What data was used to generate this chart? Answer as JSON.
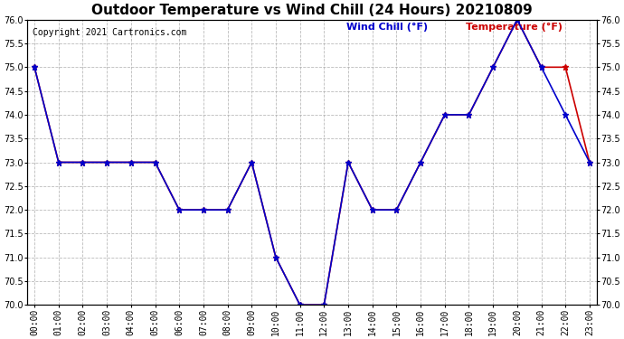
{
  "title": "Outdoor Temperature vs Wind Chill (24 Hours) 20210809",
  "copyright": "Copyright 2021 Cartronics.com",
  "legend_wind_chill": "Wind Chill (°F)",
  "legend_temperature": "Temperature (°F)",
  "x_labels": [
    "00:00",
    "01:00",
    "02:00",
    "03:00",
    "04:00",
    "05:00",
    "06:00",
    "07:00",
    "08:00",
    "09:00",
    "10:00",
    "11:00",
    "12:00",
    "13:00",
    "14:00",
    "15:00",
    "16:00",
    "17:00",
    "18:00",
    "19:00",
    "20:00",
    "21:00",
    "22:00",
    "23:00"
  ],
  "temperature": [
    75.0,
    73.0,
    73.0,
    73.0,
    73.0,
    73.0,
    72.0,
    72.0,
    72.0,
    73.0,
    71.0,
    70.0,
    70.0,
    73.0,
    72.0,
    72.0,
    73.0,
    74.0,
    74.0,
    75.0,
    76.0,
    75.0,
    75.0,
    73.0
  ],
  "wind_chill": [
    75.0,
    73.0,
    73.0,
    73.0,
    73.0,
    73.0,
    72.0,
    72.0,
    72.0,
    73.0,
    71.0,
    70.0,
    70.0,
    73.0,
    72.0,
    72.0,
    73.0,
    74.0,
    74.0,
    75.0,
    76.0,
    75.0,
    74.0,
    73.0
  ],
  "ylim_min": 70.0,
  "ylim_max": 76.0,
  "temp_color": "#cc0000",
  "wind_chill_color": "#0000cc",
  "background_color": "#ffffff",
  "plot_bg_color": "#ffffff",
  "grid_color": "#aaaaaa",
  "title_fontsize": 11,
  "legend_fontsize": 8,
  "tick_fontsize": 7,
  "copyright_fontsize": 7,
  "marker_style": "*",
  "marker_size": 5,
  "line_width": 1.2
}
